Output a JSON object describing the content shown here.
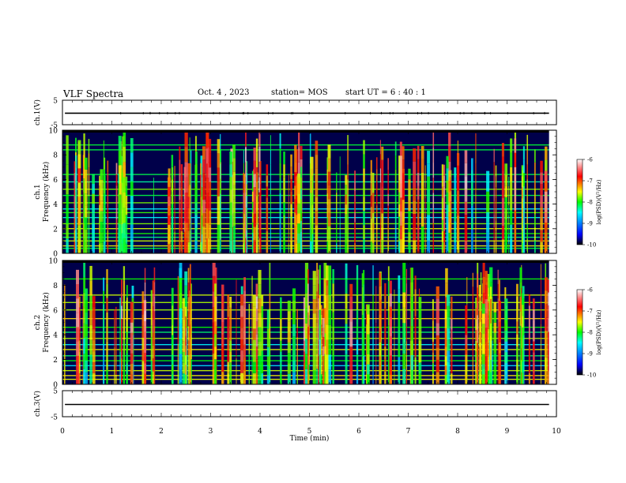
{
  "header": {
    "title": "VLF Spectra",
    "date": "Oct. 4 , 2023",
    "station": "station= MOS",
    "start": "start UT = 6 : 40 : 1"
  },
  "chart_data": [
    {
      "type": "line",
      "panel": "ch1-waveform",
      "ylabel": "ch.1(V)",
      "ylim": [
        -5,
        5
      ],
      "yticks": [
        "5",
        "-5"
      ],
      "xlim": [
        0,
        10
      ],
      "series": [
        {
          "values_const": -0.3
        }
      ]
    },
    {
      "type": "heatmap",
      "panel": "ch1-spectrogram",
      "ylabel": "ch.1 Frequency (kHz)",
      "ylim": [
        0,
        10
      ],
      "yticks": [
        "0",
        "2",
        "4",
        "6",
        "8",
        "10"
      ],
      "xlim": [
        0,
        10
      ],
      "colorbar": {
        "label": "log(PSD)(V²/Hz)",
        "range": [
          -10,
          -6
        ],
        "ticks": [
          "-6",
          "-7",
          "-8",
          "-9",
          "-10"
        ]
      }
    },
    {
      "type": "heatmap",
      "panel": "ch2-spectrogram",
      "ylabel": "ch.2 Frequency (kHz)",
      "ylim": [
        0,
        10
      ],
      "yticks": [
        "0",
        "2",
        "4",
        "6",
        "8",
        "10"
      ],
      "xlim": [
        0,
        10
      ],
      "colorbar": {
        "label": "log(PSD)(V²/Hz)",
        "range": [
          -10,
          -6
        ],
        "ticks": [
          "-6",
          "-7",
          "-8",
          "-9",
          "-10"
        ]
      }
    },
    {
      "type": "line",
      "panel": "ch3-waveform",
      "ylabel": "ch.3(V)",
      "ylim": [
        -5,
        5
      ],
      "yticks": [
        "5",
        "-5"
      ],
      "xlim": [
        0,
        10
      ],
      "series": [
        {
          "values_const": -0.3
        }
      ]
    }
  ],
  "xaxis": {
    "label": "Time (min)",
    "ticks": [
      "0",
      "1",
      "2",
      "3",
      "4",
      "5",
      "6",
      "7",
      "8",
      "9",
      "10"
    ]
  }
}
